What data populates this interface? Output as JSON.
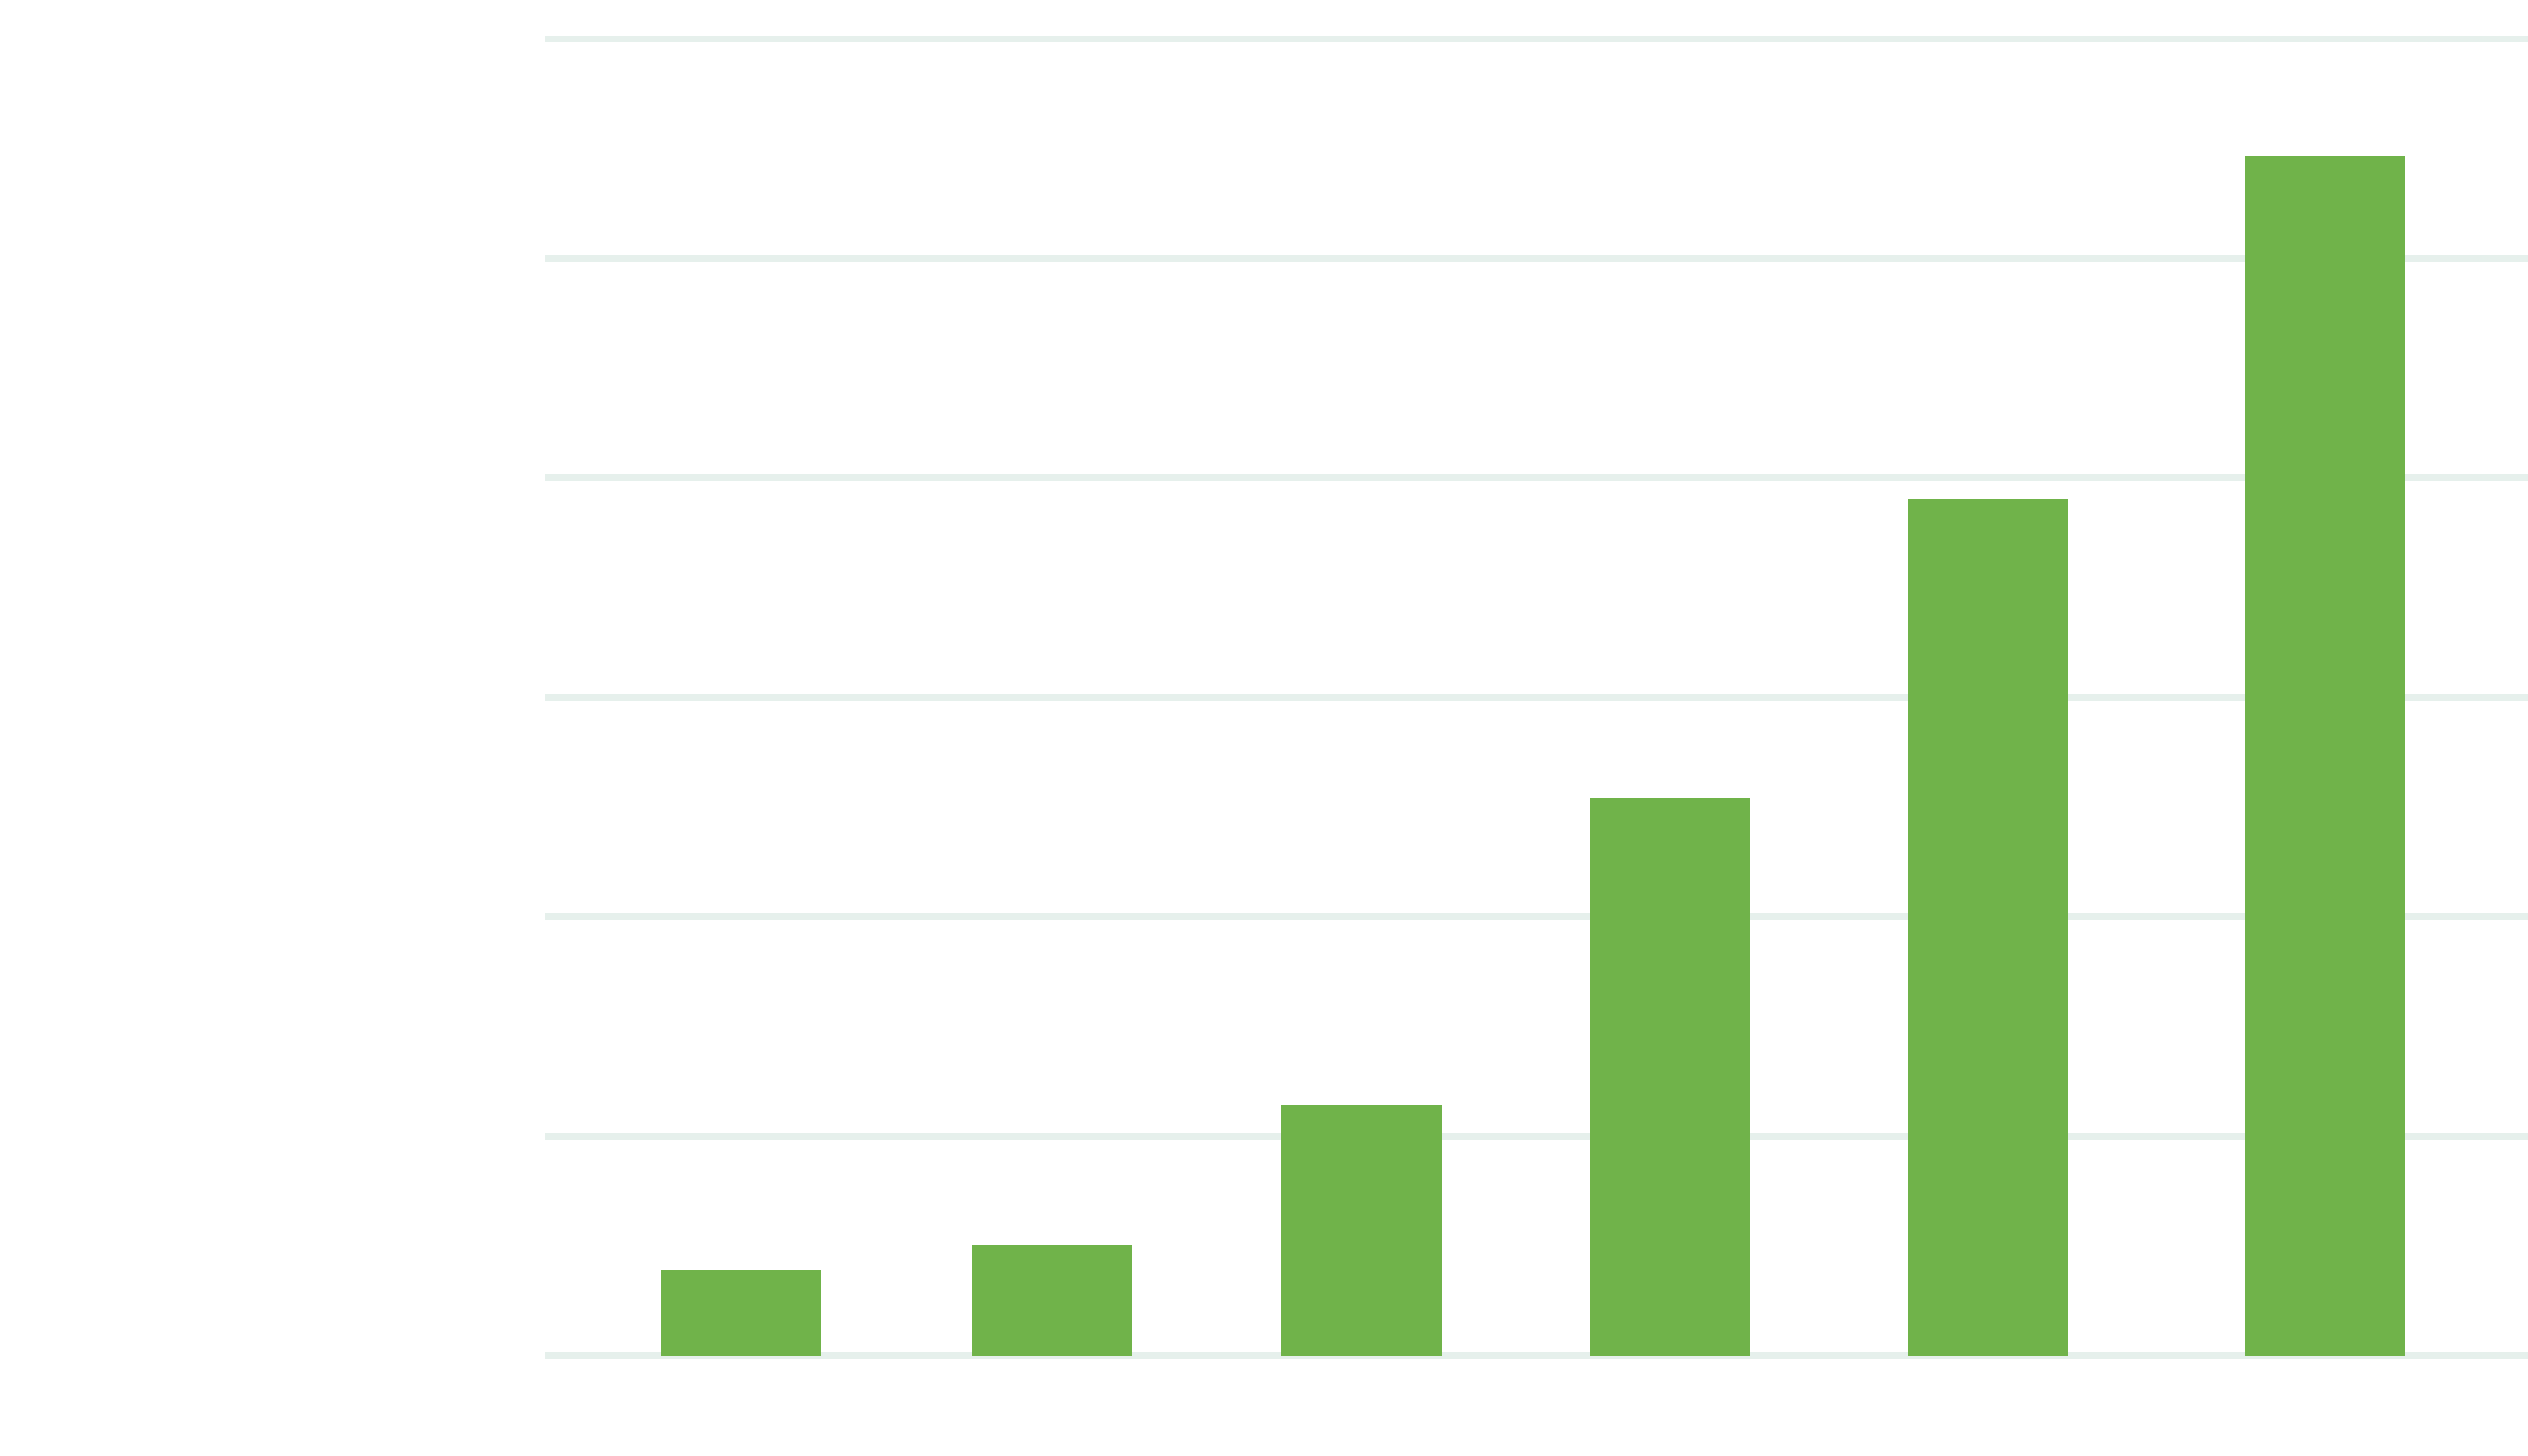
{
  "colors": {
    "bar": "#70b34a",
    "gridline": "#e6f0ec",
    "background": "#ffffff"
  },
  "chart_data": {
    "type": "bar",
    "categories": [
      "",
      "",
      "",
      "",
      "",
      ""
    ],
    "values": [
      0.41,
      0.53,
      1.2,
      2.67,
      4.1,
      5.74
    ],
    "ylim": [
      0,
      6.3
    ],
    "yticks": [
      0,
      1.05,
      2.1,
      3.15,
      4.2,
      5.25,
      6.3
    ],
    "grid": true,
    "title": "",
    "xlabel": "",
    "ylabel": ""
  }
}
